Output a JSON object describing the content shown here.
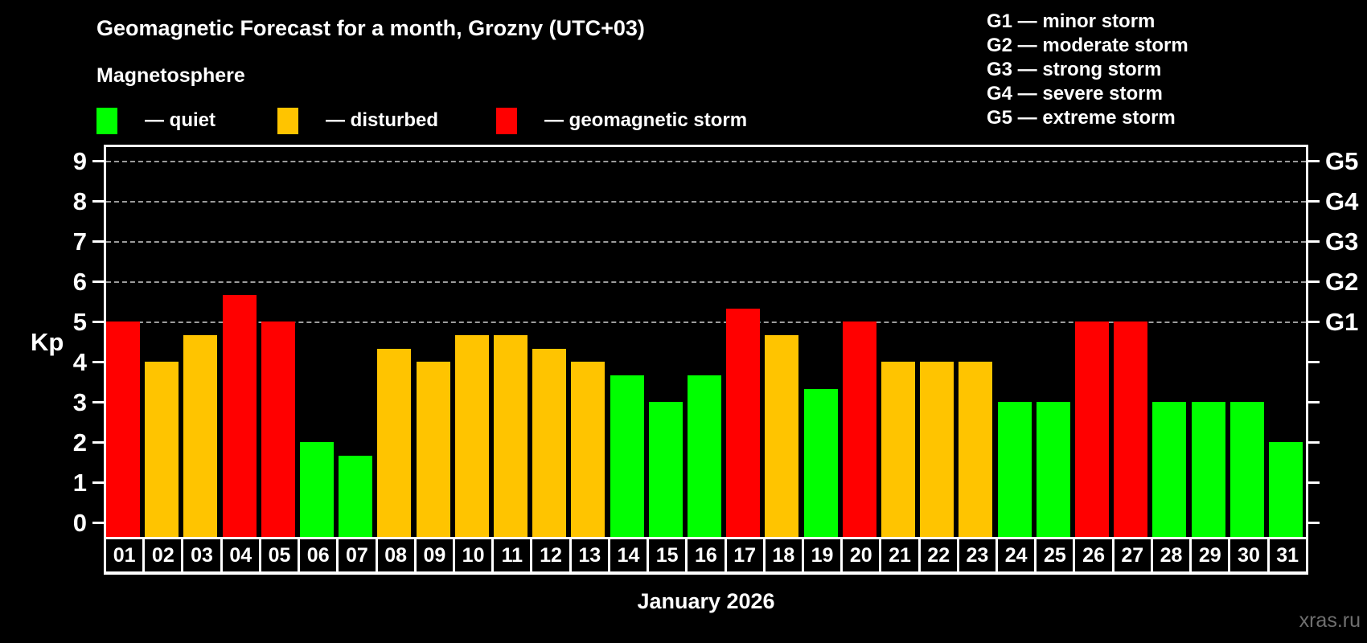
{
  "title": "Geomagnetic Forecast for a month, Grozny (UTC+03)",
  "subtitle": "Magnetosphere",
  "legend": {
    "quiet": "— quiet",
    "disturbed": "— disturbed",
    "storm": "— geomagnetic storm"
  },
  "storm_scale": [
    "G1 — minor storm",
    "G2 — moderate storm",
    "G3 — strong storm",
    "G4 — severe storm",
    "G5 — extreme storm"
  ],
  "watermark": "xras.ru",
  "colors": {
    "quiet": "#00ff00",
    "disturbed": "#ffc400",
    "storm": "#ff0000",
    "grid": "#9c9c9c",
    "axis": "#ffffff",
    "watermark": "#6f6f6f"
  },
  "chart_data": {
    "type": "bar",
    "title": "Geomagnetic Forecast for a month, Grozny (UTC+03)",
    "xlabel": "January 2026",
    "ylabel": "Kp",
    "ylim": [
      0,
      9
    ],
    "yticks": [
      0,
      1,
      2,
      3,
      4,
      5,
      6,
      7,
      8,
      9
    ],
    "gridlines": [
      5,
      6,
      7,
      8,
      9
    ],
    "right_axis_labels": {
      "5": "G1",
      "6": "G2",
      "7": "G3",
      "8": "G4",
      "9": "G5"
    },
    "legend_position": "top",
    "grid": "dashed horizontal at storm levels only",
    "categories": [
      "01",
      "02",
      "03",
      "04",
      "05",
      "06",
      "07",
      "08",
      "09",
      "10",
      "11",
      "12",
      "13",
      "14",
      "15",
      "16",
      "17",
      "18",
      "19",
      "20",
      "21",
      "22",
      "23",
      "24",
      "25",
      "26",
      "27",
      "28",
      "29",
      "30",
      "31"
    ],
    "values": [
      5,
      4,
      4.67,
      5.67,
      5,
      2,
      1.67,
      4.33,
      4,
      4.67,
      4.67,
      4.33,
      4,
      3.67,
      3,
      3.67,
      5.33,
      4.67,
      3.33,
      5,
      4,
      4,
      4,
      3,
      3,
      5,
      5,
      3,
      3,
      3,
      2
    ],
    "statuses": [
      "storm",
      "disturbed",
      "disturbed",
      "storm",
      "storm",
      "quiet",
      "quiet",
      "disturbed",
      "disturbed",
      "disturbed",
      "disturbed",
      "disturbed",
      "disturbed",
      "quiet",
      "quiet",
      "quiet",
      "storm",
      "disturbed",
      "quiet",
      "storm",
      "disturbed",
      "disturbed",
      "disturbed",
      "quiet",
      "quiet",
      "storm",
      "storm",
      "quiet",
      "quiet",
      "quiet",
      "quiet"
    ]
  }
}
